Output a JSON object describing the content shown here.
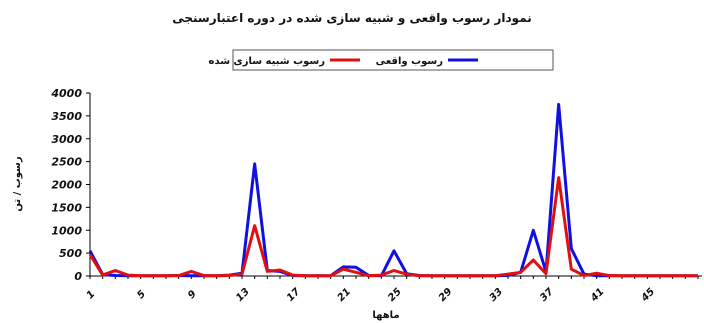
{
  "chart_data": {
    "type": "line",
    "title": "نمودار رسوب واقعی و شبیه سازی شده در دوره اعتبارسنجی",
    "xlabel": "ماهها",
    "ylabel": "رسوب / تن",
    "ylim": [
      0,
      4000
    ],
    "yticks": [
      0,
      500,
      1000,
      1500,
      2000,
      2500,
      3000,
      3500,
      4000
    ],
    "xticks": [
      1,
      5,
      9,
      13,
      17,
      21,
      25,
      29,
      33,
      37,
      41,
      45
    ],
    "x": [
      1,
      2,
      3,
      4,
      5,
      6,
      7,
      8,
      9,
      10,
      11,
      12,
      13,
      14,
      15,
      16,
      17,
      18,
      19,
      20,
      21,
      22,
      23,
      24,
      25,
      26,
      27,
      28,
      29,
      30,
      31,
      32,
      33,
      34,
      35,
      36,
      37,
      38,
      39,
      40,
      41,
      42,
      43,
      44,
      45,
      46,
      47,
      48,
      49
    ],
    "legend_position": "top",
    "series": [
      {
        "name": "رسوب واقعی",
        "color": "#1010e0",
        "values": [
          550,
          30,
          10,
          5,
          5,
          5,
          5,
          10,
          5,
          5,
          5,
          20,
          60,
          2450,
          120,
          100,
          10,
          5,
          5,
          5,
          200,
          190,
          10,
          5,
          550,
          50,
          10,
          5,
          5,
          5,
          5,
          5,
          5,
          10,
          80,
          1000,
          90,
          3750,
          600,
          40,
          5,
          5,
          5,
          5,
          5,
          5,
          5,
          5,
          5
        ]
      },
      {
        "name": "رسوب شبیه سازی شده",
        "color": "#e01010",
        "values": [
          470,
          20,
          120,
          20,
          5,
          5,
          5,
          10,
          100,
          10,
          5,
          10,
          40,
          1100,
          100,
          130,
          20,
          5,
          5,
          5,
          150,
          80,
          5,
          20,
          120,
          40,
          5,
          5,
          5,
          5,
          5,
          5,
          5,
          40,
          80,
          350,
          50,
          2150,
          150,
          10,
          60,
          10,
          5,
          5,
          5,
          5,
          5,
          5,
          5
        ]
      }
    ]
  }
}
